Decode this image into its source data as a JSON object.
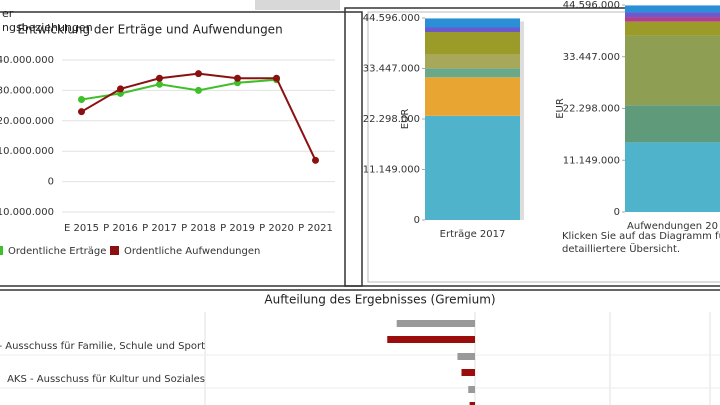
{
  "nav": [
    "er",
    "ngsbeziehungen"
  ],
  "chart_data": [
    {
      "type": "line",
      "title": "Entwicklung der Erträge und Aufwendungen",
      "categories": [
        "E 2015",
        "P 2016",
        "P 2017",
        "P 2018",
        "P 2019",
        "P 2020",
        "P 2021"
      ],
      "series": [
        {
          "name": "Ordentliche Erträge",
          "color": "#3fbf2a",
          "values": [
            27000000,
            29000000,
            32000000,
            30000000,
            32500000,
            33500000,
            null
          ]
        },
        {
          "name": "Ordentliche Aufwendungen",
          "color": "#8b1010",
          "values": [
            23000000,
            30500000,
            34000000,
            35500000,
            34000000,
            34000000,
            7000000
          ]
        }
      ],
      "ylim": [
        -10000000,
        40000000
      ],
      "yticks": [
        {
          "value": -10000000,
          "label": "-10.000.000"
        },
        0,
        {
          "value": 10000000,
          "label": "10.000.000"
        },
        {
          "value": 20000000,
          "label": "20.000.000"
        },
        {
          "value": 30000000,
          "label": "30.000.000"
        },
        {
          "value": 40000000,
          "label": "40.000.000"
        }
      ],
      "grid": true,
      "legend": "bottom"
    },
    {
      "type": "stacked-bar",
      "categories": [
        "Erträge 2017"
      ],
      "ylabel": "EUR",
      "series": [
        {
          "color": "#4fb3cc",
          "values": [
            23000000
          ]
        },
        {
          "color": "#e8a532",
          "values": [
            8500000
          ]
        },
        {
          "color": "#6aa88a",
          "values": [
            2000000
          ]
        },
        {
          "color": "#a8a85a",
          "values": [
            3000000
          ]
        },
        {
          "color": "#9b9b2a",
          "values": [
            5000000
          ]
        },
        {
          "color": "#6a5acd",
          "values": [
            1000000
          ]
        },
        {
          "color": "#2a8fd6",
          "values": [
            2000000
          ]
        }
      ],
      "ylim": [
        0,
        44596000
      ],
      "yticks": [
        0,
        {
          "value": 11149000,
          "label": "11.149.000"
        },
        {
          "value": 22298000,
          "label": "22.298.000"
        },
        {
          "value": 33447000,
          "label": "33.447.000"
        },
        {
          "value": 44596000,
          "label": "44.596.000"
        }
      ]
    },
    {
      "type": "stacked-bar",
      "categories": [
        "Aufwendungen 20"
      ],
      "ylabel": "EUR",
      "note": "Klicken Sie auf das Diagramm für eine detailliertere Übersicht.",
      "series": [
        {
          "color": "#4fb3cc",
          "values": [
            15000000
          ]
        },
        {
          "color": "#5f9a7a",
          "values": [
            8000000
          ]
        },
        {
          "color": "#8e9e52",
          "values": [
            15000000
          ]
        },
        {
          "color": "#9b9b2a",
          "values": [
            3000000
          ]
        },
        {
          "color": "#b0408a",
          "values": [
            1000000
          ]
        },
        {
          "color": "#6a5acd",
          "values": [
            1000000
          ]
        },
        {
          "color": "#2a8fd6",
          "values": [
            1500000
          ]
        }
      ],
      "ylim": [
        0,
        44596000
      ],
      "yticks": [
        0,
        {
          "value": 11149000,
          "label": "11.149.000"
        },
        {
          "value": 22298000,
          "label": "22.298.000"
        },
        {
          "value": 33447000,
          "label": "33.447.000"
        },
        {
          "value": 44596000,
          "label": "44.596.000"
        }
      ]
    },
    {
      "type": "hbar",
      "title": "Aufteilung des Ergebnisses (Gremium)",
      "categories": [
        "SS - Ausschuss für Familie, Schule und Sport",
        "AKS - Ausschuss für Kultur und Soziales",
        null
      ],
      "series": [
        {
          "color": "#999999",
          "values": [
            -0.58,
            -0.13,
            -0.05
          ]
        },
        {
          "color": "#9b0d0d",
          "values": [
            -0.65,
            -0.1,
            -0.04
          ]
        }
      ],
      "xlim": [
        -3.5,
        1.8
      ]
    }
  ]
}
